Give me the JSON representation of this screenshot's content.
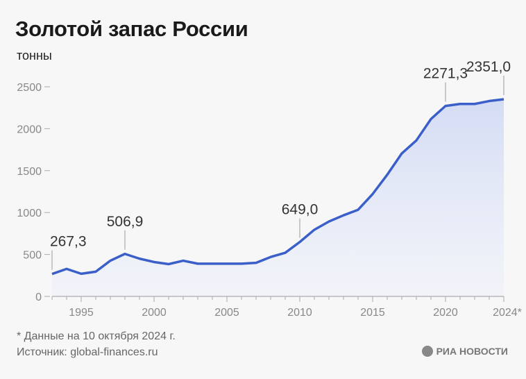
{
  "header": {
    "title": "Золотой запас России",
    "unit": "тонны"
  },
  "footer": {
    "note": "* Данные на 10 октября 2024 г.",
    "source": "Источник: global-finances.ru",
    "logo": "РИА НОВОСТИ"
  },
  "chart_data": {
    "type": "area",
    "title": "Золотой запас России",
    "ylabel": "тонны",
    "ylim": [
      0,
      2500
    ],
    "yticks": [
      0,
      500,
      1000,
      1500,
      2000,
      2500
    ],
    "xlim": [
      1993,
      2024
    ],
    "xtick_labels": [
      {
        "x": 1995,
        "label": "1995"
      },
      {
        "x": 2000,
        "label": "2000"
      },
      {
        "x": 2005,
        "label": "2005"
      },
      {
        "x": 2010,
        "label": "2010"
      },
      {
        "x": 2015,
        "label": "2015"
      },
      {
        "x": 2020,
        "label": "2020"
      },
      {
        "x": 2024,
        "label": "2024*"
      }
    ],
    "x": [
      1993,
      1994,
      1995,
      1996,
      1997,
      1998,
      1999,
      2000,
      2001,
      2002,
      2003,
      2004,
      2005,
      2006,
      2007,
      2008,
      2009,
      2010,
      2011,
      2012,
      2013,
      2014,
      2015,
      2016,
      2017,
      2018,
      2019,
      2020,
      2021,
      2022,
      2023,
      2024
    ],
    "values": [
      267.3,
      328,
      270,
      295,
      426,
      506.9,
      450,
      410,
      385,
      426,
      390,
      390,
      390,
      390,
      400,
      470,
      520,
      649.0,
      795,
      893,
      967,
      1033,
      1221,
      1451,
      1705,
      1860,
      2115,
      2271.3,
      2295,
      2295,
      2330,
      2351.0
    ],
    "annotations": [
      {
        "x": 1993,
        "label": "267,3"
      },
      {
        "x": 1998,
        "label": "506,9"
      },
      {
        "x": 2010,
        "label": "649,0"
      },
      {
        "x": 2020,
        "label": "2271,3"
      },
      {
        "x": 2024,
        "label": "2351,0"
      }
    ],
    "line_color": "#3a5fc8",
    "fill_color": "#d9e0f5",
    "grid": false
  }
}
